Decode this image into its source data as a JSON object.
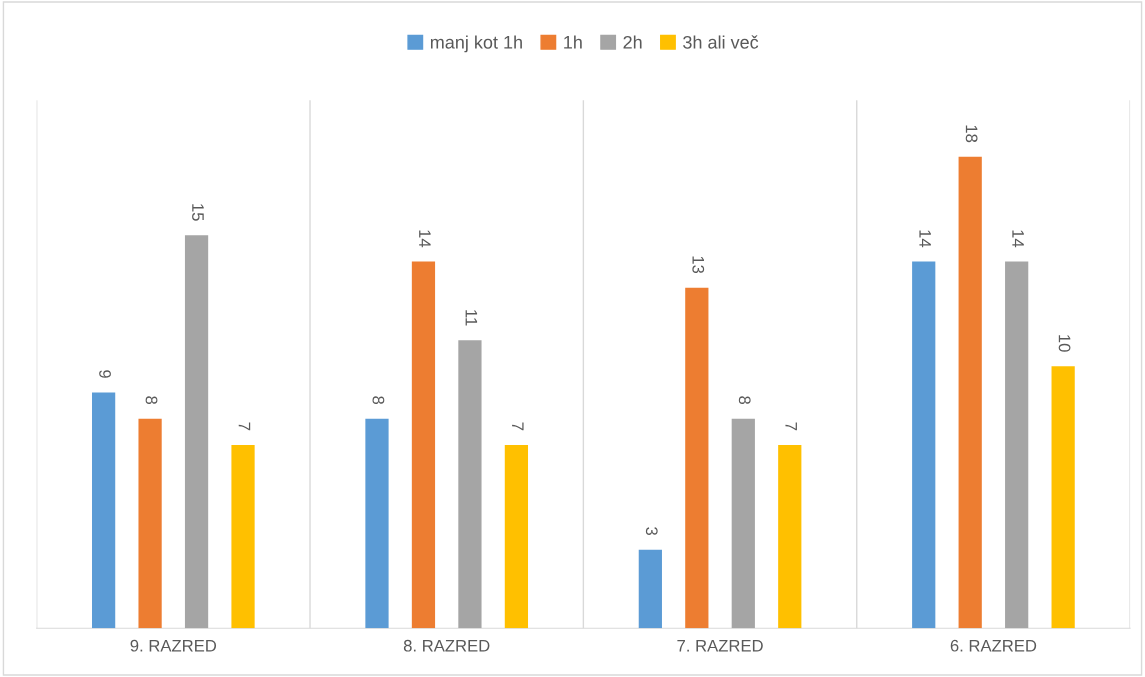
{
  "chart_data": {
    "type": "bar",
    "categories": [
      "9. RAZRED",
      "8. RAZRED",
      "7. RAZRED",
      "6. RAZRED"
    ],
    "series": [
      {
        "name": "manj kot 1h",
        "color": "#5b9bd5",
        "values": [
          9,
          8,
          3,
          14
        ]
      },
      {
        "name": "1h",
        "color": "#ed7d31",
        "values": [
          8,
          14,
          13,
          18
        ]
      },
      {
        "name": "2h",
        "color": "#a5a5a5",
        "values": [
          15,
          11,
          8,
          14
        ]
      },
      {
        "name": "3h ali več",
        "color": "#ffc000",
        "values": [
          7,
          7,
          7,
          10
        ]
      }
    ],
    "data_labels": true,
    "grid": "x",
    "legend": "top"
  }
}
